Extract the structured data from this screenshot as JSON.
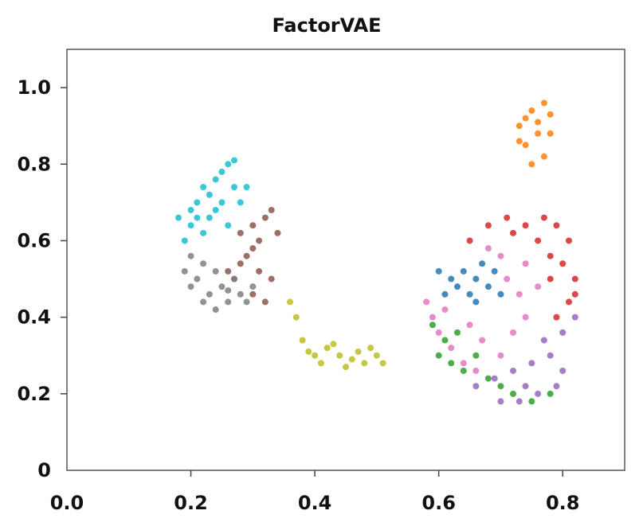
{
  "chart_data": {
    "type": "scatter",
    "title": "FactorVAE",
    "xlabel": "",
    "ylabel": "",
    "xlim": [
      0.0,
      0.9
    ],
    "ylim": [
      0.0,
      1.1
    ],
    "x_ticks": [
      0.0,
      0.2,
      0.4,
      0.6,
      0.8
    ],
    "x_tick_labels": [
      "0.0",
      "0.2",
      "0.4",
      "0.6",
      "0.8"
    ],
    "y_ticks": [
      0.0,
      0.2,
      0.4,
      0.6,
      0.8,
      1.0
    ],
    "y_tick_labels": [
      "0",
      "0.2",
      "0.4",
      "0.6",
      "0.8",
      "1.0"
    ],
    "grid": false,
    "legend": "none",
    "series": [
      {
        "color": "#17becf",
        "points": [
          [
            0.2,
            0.64
          ],
          [
            0.21,
            0.7
          ],
          [
            0.22,
            0.74
          ],
          [
            0.24,
            0.76
          ],
          [
            0.26,
            0.8
          ],
          [
            0.27,
            0.81
          ],
          [
            0.23,
            0.66
          ],
          [
            0.25,
            0.7
          ],
          [
            0.27,
            0.74
          ],
          [
            0.28,
            0.7
          ],
          [
            0.19,
            0.6
          ],
          [
            0.22,
            0.62
          ],
          [
            0.24,
            0.68
          ],
          [
            0.26,
            0.64
          ],
          [
            0.18,
            0.66
          ],
          [
            0.29,
            0.74
          ],
          [
            0.21,
            0.66
          ],
          [
            0.25,
            0.78
          ],
          [
            0.23,
            0.72
          ],
          [
            0.2,
            0.68
          ]
        ]
      },
      {
        "color": "#8c564b",
        "points": [
          [
            0.28,
            0.62
          ],
          [
            0.3,
            0.58
          ],
          [
            0.32,
            0.66
          ],
          [
            0.33,
            0.68
          ],
          [
            0.31,
            0.52
          ],
          [
            0.3,
            0.46
          ],
          [
            0.32,
            0.44
          ],
          [
            0.27,
            0.5
          ],
          [
            0.29,
            0.56
          ],
          [
            0.34,
            0.62
          ],
          [
            0.33,
            0.5
          ],
          [
            0.31,
            0.6
          ],
          [
            0.28,
            0.54
          ],
          [
            0.26,
            0.52
          ],
          [
            0.3,
            0.64
          ]
        ]
      },
      {
        "color": "#7f7f7f",
        "points": [
          [
            0.19,
            0.52
          ],
          [
            0.2,
            0.48
          ],
          [
            0.22,
            0.44
          ],
          [
            0.24,
            0.42
          ],
          [
            0.26,
            0.44
          ],
          [
            0.28,
            0.46
          ],
          [
            0.3,
            0.48
          ],
          [
            0.21,
            0.5
          ],
          [
            0.23,
            0.46
          ],
          [
            0.25,
            0.48
          ],
          [
            0.27,
            0.5
          ],
          [
            0.24,
            0.52
          ],
          [
            0.22,
            0.54
          ],
          [
            0.2,
            0.56
          ],
          [
            0.29,
            0.44
          ],
          [
            0.26,
            0.47
          ]
        ]
      },
      {
        "color": "#bcbd22",
        "points": [
          [
            0.37,
            0.4
          ],
          [
            0.38,
            0.34
          ],
          [
            0.39,
            0.31
          ],
          [
            0.4,
            0.3
          ],
          [
            0.42,
            0.32
          ],
          [
            0.44,
            0.3
          ],
          [
            0.46,
            0.29
          ],
          [
            0.48,
            0.28
          ],
          [
            0.5,
            0.3
          ],
          [
            0.51,
            0.28
          ],
          [
            0.49,
            0.32
          ],
          [
            0.45,
            0.27
          ],
          [
            0.41,
            0.28
          ],
          [
            0.43,
            0.33
          ],
          [
            0.47,
            0.31
          ],
          [
            0.36,
            0.44
          ]
        ]
      },
      {
        "color": "#ff7f0e",
        "points": [
          [
            0.73,
            0.9
          ],
          [
            0.75,
            0.94
          ],
          [
            0.77,
            0.96
          ],
          [
            0.78,
            0.93
          ],
          [
            0.76,
            0.88
          ],
          [
            0.74,
            0.85
          ],
          [
            0.77,
            0.82
          ],
          [
            0.75,
            0.8
          ],
          [
            0.73,
            0.86
          ],
          [
            0.78,
            0.88
          ],
          [
            0.76,
            0.91
          ],
          [
            0.74,
            0.92
          ]
        ]
      },
      {
        "color": "#d62728",
        "points": [
          [
            0.65,
            0.6
          ],
          [
            0.68,
            0.64
          ],
          [
            0.71,
            0.66
          ],
          [
            0.74,
            0.64
          ],
          [
            0.77,
            0.66
          ],
          [
            0.79,
            0.64
          ],
          [
            0.81,
            0.6
          ],
          [
            0.82,
            0.5
          ],
          [
            0.81,
            0.44
          ],
          [
            0.79,
            0.4
          ],
          [
            0.78,
            0.56
          ],
          [
            0.76,
            0.6
          ],
          [
            0.72,
            0.62
          ],
          [
            0.8,
            0.54
          ],
          [
            0.82,
            0.46
          ],
          [
            0.78,
            0.5
          ]
        ]
      },
      {
        "color": "#1f77b4",
        "points": [
          [
            0.6,
            0.52
          ],
          [
            0.62,
            0.5
          ],
          [
            0.64,
            0.52
          ],
          [
            0.66,
            0.5
          ],
          [
            0.68,
            0.48
          ],
          [
            0.7,
            0.46
          ],
          [
            0.67,
            0.54
          ],
          [
            0.63,
            0.48
          ],
          [
            0.65,
            0.46
          ],
          [
            0.69,
            0.52
          ],
          [
            0.61,
            0.46
          ],
          [
            0.66,
            0.44
          ]
        ]
      },
      {
        "color": "#e377c2",
        "points": [
          [
            0.58,
            0.44
          ],
          [
            0.59,
            0.4
          ],
          [
            0.6,
            0.36
          ],
          [
            0.62,
            0.32
          ],
          [
            0.64,
            0.28
          ],
          [
            0.66,
            0.26
          ],
          [
            0.7,
            0.3
          ],
          [
            0.72,
            0.36
          ],
          [
            0.74,
            0.4
          ],
          [
            0.7,
            0.56
          ],
          [
            0.68,
            0.58
          ],
          [
            0.74,
            0.54
          ],
          [
            0.76,
            0.48
          ],
          [
            0.61,
            0.42
          ],
          [
            0.65,
            0.38
          ],
          [
            0.73,
            0.46
          ],
          [
            0.67,
            0.34
          ],
          [
            0.71,
            0.5
          ]
        ]
      },
      {
        "color": "#2ca02c",
        "points": [
          [
            0.59,
            0.38
          ],
          [
            0.61,
            0.34
          ],
          [
            0.62,
            0.28
          ],
          [
            0.64,
            0.26
          ],
          [
            0.66,
            0.3
          ],
          [
            0.68,
            0.24
          ],
          [
            0.72,
            0.2
          ],
          [
            0.75,
            0.18
          ],
          [
            0.78,
            0.2
          ],
          [
            0.63,
            0.36
          ],
          [
            0.6,
            0.3
          ],
          [
            0.7,
            0.22
          ]
        ]
      },
      {
        "color": "#9467bd",
        "points": [
          [
            0.66,
            0.22
          ],
          [
            0.7,
            0.18
          ],
          [
            0.73,
            0.18
          ],
          [
            0.76,
            0.2
          ],
          [
            0.79,
            0.22
          ],
          [
            0.8,
            0.26
          ],
          [
            0.78,
            0.3
          ],
          [
            0.75,
            0.28
          ],
          [
            0.72,
            0.26
          ],
          [
            0.69,
            0.24
          ],
          [
            0.8,
            0.36
          ],
          [
            0.82,
            0.4
          ],
          [
            0.77,
            0.34
          ],
          [
            0.74,
            0.22
          ]
        ]
      }
    ]
  }
}
